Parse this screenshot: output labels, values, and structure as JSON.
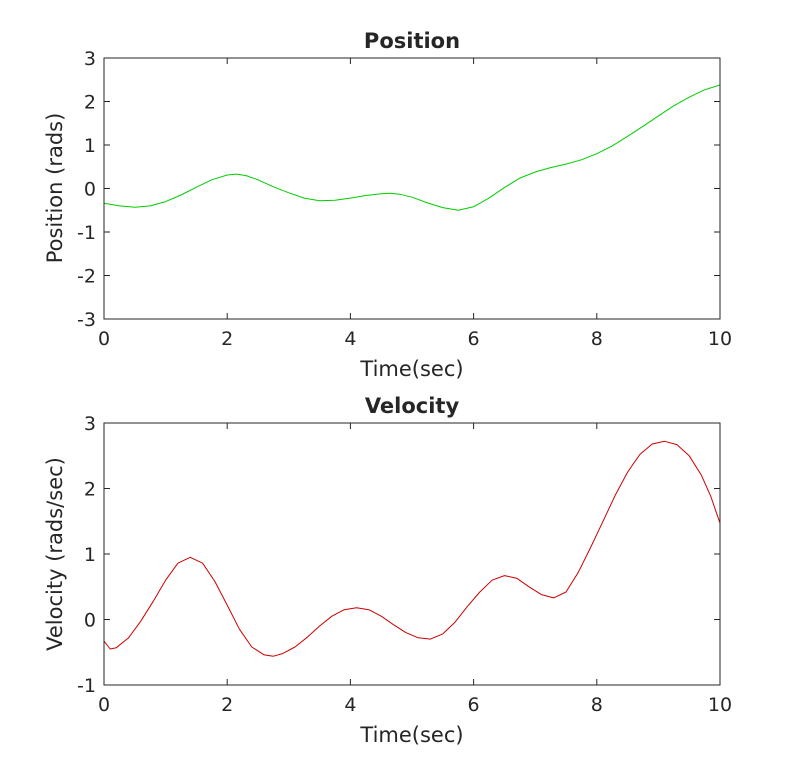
{
  "chart_data": [
    {
      "type": "line",
      "title": "Position",
      "xlabel": "Time(sec)",
      "ylabel": "Position (rads)",
      "xlim": [
        0,
        10
      ],
      "ylim": [
        -3,
        3
      ],
      "xticks": [
        0,
        2,
        4,
        6,
        8,
        10
      ],
      "yticks": [
        -3,
        -2,
        -1,
        0,
        1,
        2,
        3
      ],
      "grid": false,
      "series": [
        {
          "color": "#00cc00",
          "x": [
            0,
            0.25,
            0.5,
            0.75,
            1.0,
            1.25,
            1.5,
            1.75,
            2.0,
            2.15,
            2.3,
            2.5,
            2.75,
            3.0,
            3.25,
            3.5,
            3.75,
            4.0,
            4.25,
            4.5,
            4.65,
            4.8,
            5.0,
            5.25,
            5.5,
            5.75,
            6.0,
            6.25,
            6.5,
            6.75,
            7.0,
            7.25,
            7.5,
            7.75,
            8.0,
            8.25,
            8.5,
            8.75,
            9.0,
            9.25,
            9.5,
            9.75,
            10.0
          ],
          "y": [
            -0.34,
            -0.4,
            -0.43,
            -0.4,
            -0.3,
            -0.15,
            0.03,
            0.2,
            0.31,
            0.33,
            0.3,
            0.2,
            0.04,
            -0.1,
            -0.22,
            -0.28,
            -0.27,
            -0.22,
            -0.16,
            -0.12,
            -0.11,
            -0.13,
            -0.2,
            -0.33,
            -0.44,
            -0.5,
            -0.42,
            -0.22,
            0.02,
            0.24,
            0.38,
            0.48,
            0.56,
            0.66,
            0.8,
            0.98,
            1.2,
            1.43,
            1.67,
            1.9,
            2.1,
            2.27,
            2.38
          ]
        }
      ]
    },
    {
      "type": "line",
      "title": "Velocity",
      "xlabel": "Time(sec)",
      "ylabel": "Velocity (rads/sec)",
      "xlim": [
        0,
        10
      ],
      "ylim": [
        -1,
        3
      ],
      "xticks": [
        0,
        2,
        4,
        6,
        8,
        10
      ],
      "yticks": [
        -1,
        0,
        1,
        2,
        3
      ],
      "grid": false,
      "series": [
        {
          "color": "#cc0000",
          "x": [
            0,
            0.1,
            0.2,
            0.4,
            0.6,
            0.8,
            1.0,
            1.2,
            1.4,
            1.6,
            1.8,
            2.0,
            2.2,
            2.4,
            2.6,
            2.75,
            2.9,
            3.1,
            3.3,
            3.5,
            3.7,
            3.9,
            4.1,
            4.3,
            4.5,
            4.7,
            4.9,
            5.1,
            5.3,
            5.5,
            5.7,
            5.9,
            6.1,
            6.3,
            6.5,
            6.7,
            6.9,
            7.1,
            7.3,
            7.5,
            7.7,
            7.9,
            8.1,
            8.3,
            8.5,
            8.7,
            8.9,
            9.1,
            9.3,
            9.5,
            9.7,
            9.85,
            10.0
          ],
          "y": [
            -0.33,
            -0.45,
            -0.43,
            -0.28,
            -0.02,
            0.28,
            0.6,
            0.86,
            0.95,
            0.86,
            0.58,
            0.22,
            -0.15,
            -0.42,
            -0.54,
            -0.56,
            -0.52,
            -0.42,
            -0.27,
            -0.1,
            0.05,
            0.15,
            0.18,
            0.15,
            0.05,
            -0.08,
            -0.2,
            -0.28,
            -0.3,
            -0.22,
            -0.04,
            0.2,
            0.42,
            0.6,
            0.67,
            0.63,
            0.5,
            0.38,
            0.33,
            0.42,
            0.72,
            1.1,
            1.5,
            1.9,
            2.25,
            2.52,
            2.68,
            2.72,
            2.67,
            2.5,
            2.2,
            1.88,
            1.47
          ]
        }
      ]
    }
  ]
}
